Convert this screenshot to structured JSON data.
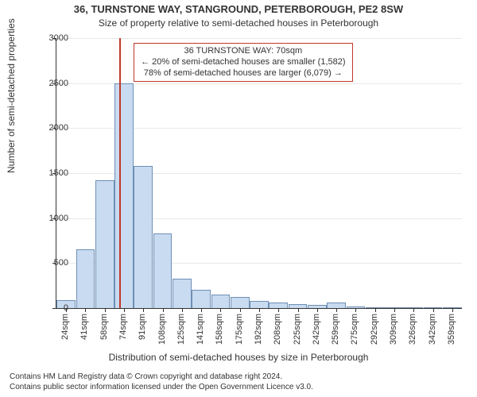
{
  "title_main": "36, TURNSTONE WAY, STANGROUND, PETERBOROUGH, PE2 8SW",
  "title_sub": "Size of property relative to semi-detached houses in Peterborough",
  "y_axis_label": "Number of semi-detached properties",
  "x_axis_label": "Distribution of semi-detached houses by size in Peterborough",
  "footer_line1": "Contains HM Land Registry data © Crown copyright and database right 2024.",
  "footer_line2": "Contains public sector information licensed under the Open Government Licence v3.0.",
  "annotation": {
    "line1": "36 TURNSTONE WAY: 70sqm",
    "line2": "← 20% of semi-detached houses are smaller (1,582)",
    "line3": "78% of semi-detached houses are larger (6,079) →"
  },
  "chart": {
    "type": "histogram",
    "title_fontsize": 13,
    "subtitle_fontsize": 12,
    "axis_label_fontsize": 12,
    "tick_fontsize": 11,
    "annotation_fontsize": 11,
    "footer_fontsize": 10,
    "background_color": "#ffffff",
    "grid_color": "#e9e9e9",
    "axis_color": "#333333",
    "bar_fill": "#c8dbf0",
    "bar_stroke": "#6f8fb5",
    "marker_color": "#c0392b",
    "annotation_border": "#c0392b",
    "annotation_text_color": "#333333",
    "ylim": [
      0,
      3000
    ],
    "ytick_step": 500,
    "yticks": [
      0,
      500,
      1000,
      1500,
      2000,
      2500,
      3000
    ],
    "marker_x_sqm": 70,
    "x_min_sqm": 16,
    "x_max_sqm": 364,
    "bin_width_sqm": 17,
    "x_tick_labels": [
      "24sqm",
      "41sqm",
      "58sqm",
      "74sqm",
      "91sqm",
      "108sqm",
      "125sqm",
      "141sqm",
      "158sqm",
      "175sqm",
      "192sqm",
      "208sqm",
      "225sqm",
      "242sqm",
      "259sqm",
      "275sqm",
      "292sqm",
      "309sqm",
      "326sqm",
      "342sqm",
      "359sqm"
    ],
    "bar_values": [
      90,
      650,
      1420,
      2500,
      1580,
      830,
      330,
      200,
      150,
      120,
      80,
      60,
      40,
      35,
      60,
      15,
      10,
      8,
      5,
      4,
      3
    ]
  }
}
